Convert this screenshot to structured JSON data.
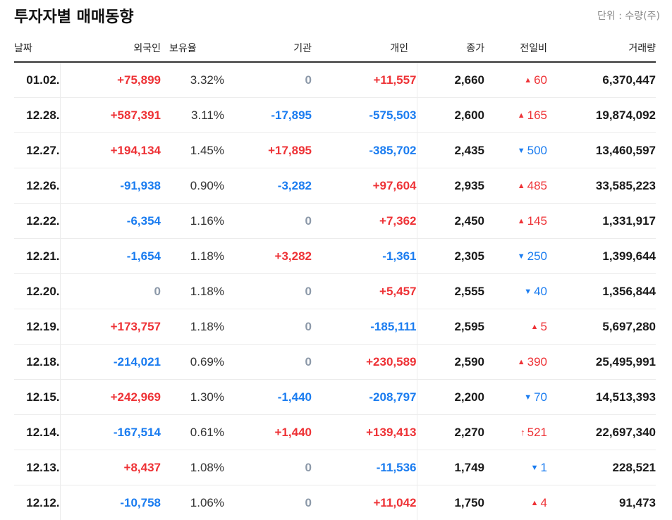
{
  "header": {
    "title": "투자자별 매매동향",
    "unit": "단위 : 수량(주)"
  },
  "colors": {
    "up": "#ee3236",
    "down": "#1a7cf0",
    "zero": "#8b98a8",
    "text": "#1a1a1a"
  },
  "table": {
    "columns": {
      "date": "날짜",
      "foreign": "외국인",
      "ratio": "보유율",
      "institution": "기관",
      "individual": "개인",
      "close": "종가",
      "change": "전일비",
      "volume": "거래량"
    },
    "rows": [
      {
        "date": "01.02.",
        "foreign": "+75,899",
        "ratio": "3.32%",
        "institution": "0",
        "individual": "+11,557",
        "close": "2,660",
        "change_dir": "up",
        "change_icon": "▲",
        "change": "60",
        "volume": "6,370,447"
      },
      {
        "date": "12.28.",
        "foreign": "+587,391",
        "ratio": "3.11%",
        "institution": "-17,895",
        "individual": "-575,503",
        "close": "2,600",
        "change_dir": "up",
        "change_icon": "▲",
        "change": "165",
        "volume": "19,874,092"
      },
      {
        "date": "12.27.",
        "foreign": "+194,134",
        "ratio": "1.45%",
        "institution": "+17,895",
        "individual": "-385,702",
        "close": "2,435",
        "change_dir": "down",
        "change_icon": "▼",
        "change": "500",
        "volume": "13,460,597"
      },
      {
        "date": "12.26.",
        "foreign": "-91,938",
        "ratio": "0.90%",
        "institution": "-3,282",
        "individual": "+97,604",
        "close": "2,935",
        "change_dir": "up",
        "change_icon": "▲",
        "change": "485",
        "volume": "33,585,223"
      },
      {
        "date": "12.22.",
        "foreign": "-6,354",
        "ratio": "1.16%",
        "institution": "0",
        "individual": "+7,362",
        "close": "2,450",
        "change_dir": "up",
        "change_icon": "▲",
        "change": "145",
        "volume": "1,331,917"
      },
      {
        "date": "12.21.",
        "foreign": "-1,654",
        "ratio": "1.18%",
        "institution": "+3,282",
        "individual": "-1,361",
        "close": "2,305",
        "change_dir": "down",
        "change_icon": "▼",
        "change": "250",
        "volume": "1,399,644"
      },
      {
        "date": "12.20.",
        "foreign": "0",
        "ratio": "1.18%",
        "institution": "0",
        "individual": "+5,457",
        "close": "2,555",
        "change_dir": "down",
        "change_icon": "▼",
        "change": "40",
        "volume": "1,356,844"
      },
      {
        "date": "12.19.",
        "foreign": "+173,757",
        "ratio": "1.18%",
        "institution": "0",
        "individual": "-185,111",
        "close": "2,595",
        "change_dir": "up",
        "change_icon": "▲",
        "change": "5",
        "volume": "5,697,280"
      },
      {
        "date": "12.18.",
        "foreign": "-214,021",
        "ratio": "0.69%",
        "institution": "0",
        "individual": "+230,589",
        "close": "2,590",
        "change_dir": "up",
        "change_icon": "▲",
        "change": "390",
        "volume": "25,495,991"
      },
      {
        "date": "12.15.",
        "foreign": "+242,969",
        "ratio": "1.30%",
        "institution": "-1,440",
        "individual": "-208,797",
        "close": "2,200",
        "change_dir": "down",
        "change_icon": "▼",
        "change": "70",
        "volume": "14,513,393"
      },
      {
        "date": "12.14.",
        "foreign": "-167,514",
        "ratio": "0.61%",
        "institution": "+1,440",
        "individual": "+139,413",
        "close": "2,270",
        "change_dir": "upper-limit",
        "change_icon": "🠅",
        "change": "521",
        "volume": "22,697,340"
      },
      {
        "date": "12.13.",
        "foreign": "+8,437",
        "ratio": "1.08%",
        "institution": "0",
        "individual": "-11,536",
        "close": "1,749",
        "change_dir": "down",
        "change_icon": "▼",
        "change": "1",
        "volume": "228,521"
      },
      {
        "date": "12.12.",
        "foreign": "-10,758",
        "ratio": "1.06%",
        "institution": "0",
        "individual": "+11,042",
        "close": "1,750",
        "change_dir": "up",
        "change_icon": "▲",
        "change": "4",
        "volume": "91,473"
      }
    ]
  }
}
